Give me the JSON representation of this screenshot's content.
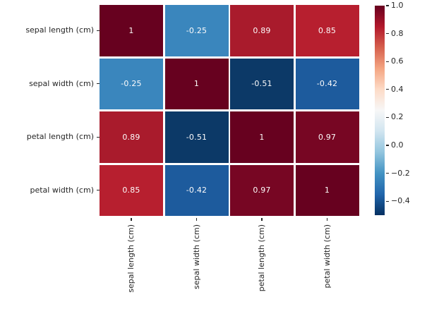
{
  "figure": {
    "background": "#ffffff",
    "axis_text_color": "#262626"
  },
  "chart_data": {
    "type": "heatmap",
    "title": "",
    "description": "Correlation matrix heatmap of iris features, RdBu_r colormap, annotated",
    "x_categories": [
      "sepal length (cm)",
      "sepal width (cm)",
      "petal length (cm)",
      "petal width (cm)"
    ],
    "y_categories": [
      "sepal length (cm)",
      "sepal width (cm)",
      "petal length (cm)",
      "petal width (cm)"
    ],
    "matrix": [
      [
        1,
        -0.25,
        0.89,
        0.85
      ],
      [
        -0.25,
        1,
        -0.51,
        -0.42
      ],
      [
        0.89,
        -0.51,
        1,
        0.97
      ],
      [
        0.85,
        -0.42,
        0.97,
        1
      ]
    ],
    "cell_labels": [
      [
        "1",
        "-0.25",
        "0.89",
        "0.85"
      ],
      [
        "-0.25",
        "1",
        "-0.51",
        "-0.42"
      ],
      [
        "0.89",
        "-0.51",
        "1",
        "0.97"
      ],
      [
        "0.85",
        "-0.42",
        "0.97",
        "1"
      ]
    ],
    "cell_colors": [
      [
        "#67011f",
        "#3a86bd",
        "#a91b2c",
        "#b71f2f"
      ],
      [
        "#3a86bd",
        "#67011f",
        "#0c3967",
        "#1d5b9d"
      ],
      [
        "#a91b2c",
        "#0c3967",
        "#67011f",
        "#770623"
      ],
      [
        "#b71f2f",
        "#1d5b9d",
        "#770623",
        "#67011f"
      ]
    ],
    "annotation_color": "#fdfcfc",
    "grid_line_color": "#ffffff",
    "colormap": "RdBu_r",
    "legend_position": "right",
    "colorbar": {
      "range": [
        -0.51,
        1.0
      ],
      "tick_labels": [
        "1.0",
        "0.8",
        "0.6",
        "0.4",
        "0.2",
        "0.0",
        "−0.2",
        "−0.4"
      ],
      "gradient_stops": [
        {
          "pos": 0,
          "color": "#67001f"
        },
        {
          "pos": 10,
          "color": "#b2182b"
        },
        {
          "pos": 20,
          "color": "#d6604d"
        },
        {
          "pos": 30,
          "color": "#f4a582"
        },
        {
          "pos": 40,
          "color": "#fddbc7"
        },
        {
          "pos": 50,
          "color": "#f7f7f7"
        },
        {
          "pos": 60,
          "color": "#d1e5f0"
        },
        {
          "pos": 70,
          "color": "#92c5de"
        },
        {
          "pos": 80,
          "color": "#4393c3"
        },
        {
          "pos": 90,
          "color": "#2166ac"
        },
        {
          "pos": 100,
          "color": "#053061"
        }
      ]
    }
  }
}
